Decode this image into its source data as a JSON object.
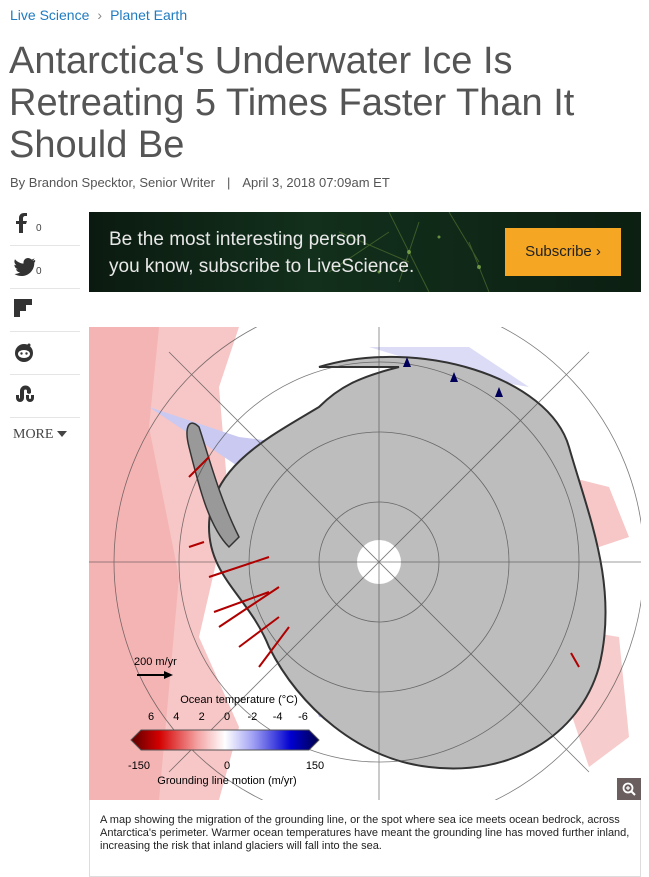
{
  "breadcrumb": [
    "Live Science",
    "Planet Earth"
  ],
  "article": {
    "title": "Antarctica's Underwater Ice Is Retreating 5 Times Faster Than It Should Be",
    "byline": {
      "author": "By Brandon Specktor, Senior Writer",
      "separator": "|",
      "date": "April 3, 2018 07:09am ET"
    }
  },
  "share": {
    "facebook_count": 0,
    "twitter_count": 0,
    "more": "MORE"
  },
  "ad": {
    "text_lines": [
      "Be the most interesting person",
      "you know, subscribe to LiveScience."
    ],
    "button": "Subscribe ›"
  },
  "figure": {
    "map": {
      "scale_label": "200 m/yr",
      "temperature_title": "Ocean temperature (°C)",
      "temperature_ticks": [
        6,
        4,
        2,
        0,
        -2,
        -4,
        -6
      ],
      "motion_ticks": [
        -150,
        0,
        150
      ],
      "motion_title": "Grounding line motion (m/yr)"
    },
    "caption": "A map showing the migration of the grounding line, or the spot where sea ice meets ocean bedrock, across Antarctica's perimeter. Warmer ocean temperatures have meant the grounding line has moved further inland, increasing the risk that inland glaciers will fall into the sea."
  }
}
